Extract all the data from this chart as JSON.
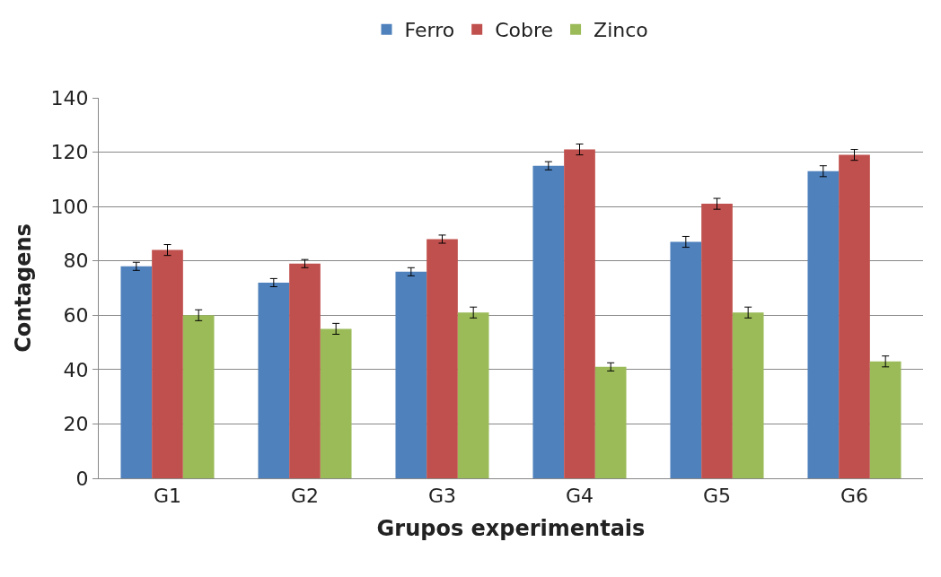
{
  "chart_data": {
    "type": "bar",
    "xlabel": "Grupos experimentais",
    "ylabel": "Contagens",
    "categories": [
      "G1",
      "G2",
      "G3",
      "G4",
      "G5",
      "G6"
    ],
    "series": [
      {
        "name": "Ferro",
        "color": "#4f81bd",
        "values": [
          78,
          72,
          76,
          115,
          87,
          113
        ],
        "errors": [
          1.5,
          1.5,
          1.5,
          1.5,
          2,
          2
        ]
      },
      {
        "name": "Cobre",
        "color": "#c0504d",
        "values": [
          84,
          79,
          88,
          121,
          101,
          119
        ],
        "errors": [
          2,
          1.5,
          1.5,
          2,
          2,
          2
        ]
      },
      {
        "name": "Zinco",
        "color": "#9bbb59",
        "values": [
          60,
          55,
          61,
          41,
          61,
          43
        ],
        "errors": [
          2,
          2,
          2,
          1.5,
          2,
          2
        ]
      }
    ],
    "ylim": [
      0,
      140
    ],
    "yticks": [
      0,
      20,
      40,
      60,
      80,
      100,
      120,
      140
    ],
    "grid": "y",
    "legend": "top"
  }
}
